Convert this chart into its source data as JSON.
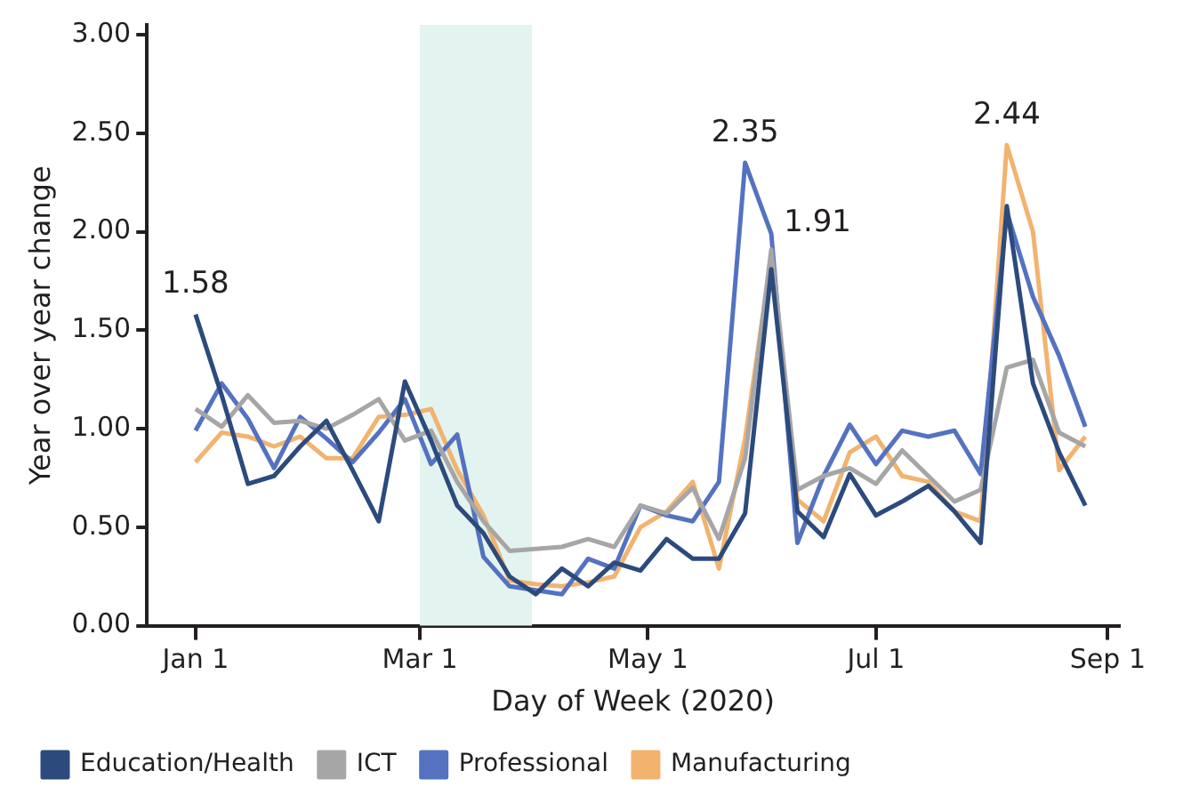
{
  "chart_data": {
    "type": "line",
    "xlabel": "Day of Week (2020)",
    "ylabel": "Year over year change",
    "x": [
      "2020-01-01",
      "2020-01-08",
      "2020-01-15",
      "2020-01-22",
      "2020-01-29",
      "2020-02-05",
      "2020-02-12",
      "2020-02-19",
      "2020-02-26",
      "2020-03-04",
      "2020-03-11",
      "2020-03-18",
      "2020-03-25",
      "2020-04-01",
      "2020-04-08",
      "2020-04-15",
      "2020-04-22",
      "2020-04-29",
      "2020-05-06",
      "2020-05-13",
      "2020-05-20",
      "2020-05-27",
      "2020-06-03",
      "2020-06-10",
      "2020-06-17",
      "2020-06-24",
      "2020-07-01",
      "2020-07-08",
      "2020-07-15",
      "2020-07-22",
      "2020-07-29",
      "2020-08-05",
      "2020-08-12",
      "2020-08-19",
      "2020-08-26"
    ],
    "series": [
      {
        "name": "Education/Health",
        "color": "#2c4a7c",
        "values": [
          1.58,
          1.17,
          0.72,
          0.76,
          0.91,
          1.04,
          0.79,
          0.53,
          1.24,
          0.94,
          0.61,
          0.47,
          0.25,
          0.16,
          0.29,
          0.2,
          0.32,
          0.28,
          0.44,
          0.34,
          0.34,
          0.57,
          1.81,
          0.58,
          0.45,
          0.77,
          0.56,
          0.63,
          0.71,
          0.58,
          0.42,
          2.13,
          1.23,
          0.88,
          0.61
        ]
      },
      {
        "name": "ICT",
        "color": "#a6a6a6",
        "values": [
          1.1,
          1.01,
          1.17,
          1.03,
          1.04,
          1.0,
          1.07,
          1.15,
          0.94,
          0.99,
          0.73,
          0.53,
          0.38,
          0.39,
          0.4,
          0.44,
          0.4,
          0.61,
          0.57,
          0.7,
          0.44,
          0.85,
          1.91,
          0.69,
          0.76,
          0.8,
          0.72,
          0.89,
          0.76,
          0.63,
          0.69,
          1.31,
          1.35,
          0.98,
          0.91
        ]
      },
      {
        "name": "Professional",
        "color": "#5472c0",
        "values": [
          0.99,
          1.23,
          1.05,
          0.8,
          1.06,
          0.95,
          0.83,
          0.98,
          1.15,
          0.82,
          0.97,
          0.35,
          0.2,
          0.18,
          0.16,
          0.34,
          0.29,
          0.61,
          0.56,
          0.53,
          0.73,
          2.35,
          1.99,
          0.42,
          0.76,
          1.02,
          0.82,
          0.99,
          0.96,
          0.99,
          0.77,
          2.1,
          1.67,
          1.37,
          1.01
        ]
      },
      {
        "name": "Manufacturing",
        "color": "#f2b36f",
        "values": [
          0.83,
          0.98,
          0.96,
          0.91,
          0.96,
          0.85,
          0.85,
          1.06,
          1.07,
          1.1,
          0.79,
          0.56,
          0.23,
          0.21,
          0.2,
          0.22,
          0.25,
          0.5,
          0.58,
          0.73,
          0.29,
          0.95,
          1.87,
          0.64,
          0.53,
          0.88,
          0.96,
          0.76,
          0.73,
          0.58,
          0.53,
          2.44,
          2.0,
          0.79,
          0.96
        ]
      }
    ],
    "xlim": [
      "2019-12-19",
      "2020-09-04"
    ],
    "xticks": [
      {
        "value": "2020-01-01",
        "label": "Jan 1"
      },
      {
        "value": "2020-03-01",
        "label": "Mar 1"
      },
      {
        "value": "2020-05-01",
        "label": "May 1"
      },
      {
        "value": "2020-07-01",
        "label": "Jul 1"
      },
      {
        "value": "2020-09-01",
        "label": "Sep 1"
      }
    ],
    "ylim": [
      0,
      3.05
    ],
    "yticks": [
      {
        "value": 0,
        "label": "0.00"
      },
      {
        "value": 0.5,
        "label": "0.50"
      },
      {
        "value": 1,
        "label": "1.00"
      },
      {
        "value": 1.5,
        "label": "1.50"
      },
      {
        "value": 2,
        "label": "2.00"
      },
      {
        "value": 2.5,
        "label": "2.50"
      },
      {
        "value": 3,
        "label": "3.00"
      }
    ],
    "bands": [
      {
        "axis": "x",
        "from": "2020-03-01",
        "to": "2020-03-31",
        "color": "#e3f4f0"
      }
    ],
    "annotations": [
      {
        "text": "1.58",
        "x": "2020-01-01",
        "y": 1.58
      },
      {
        "text": "2.35",
        "x": "2020-05-27",
        "y": 2.35
      },
      {
        "text": "1.91",
        "x": "2020-06-03",
        "y": 1.91
      },
      {
        "text": "2.44",
        "x": "2020-08-05",
        "y": 2.44
      }
    ],
    "grid": false,
    "legend": "bottom",
    "marker": "none",
    "line_style": "solid"
  }
}
